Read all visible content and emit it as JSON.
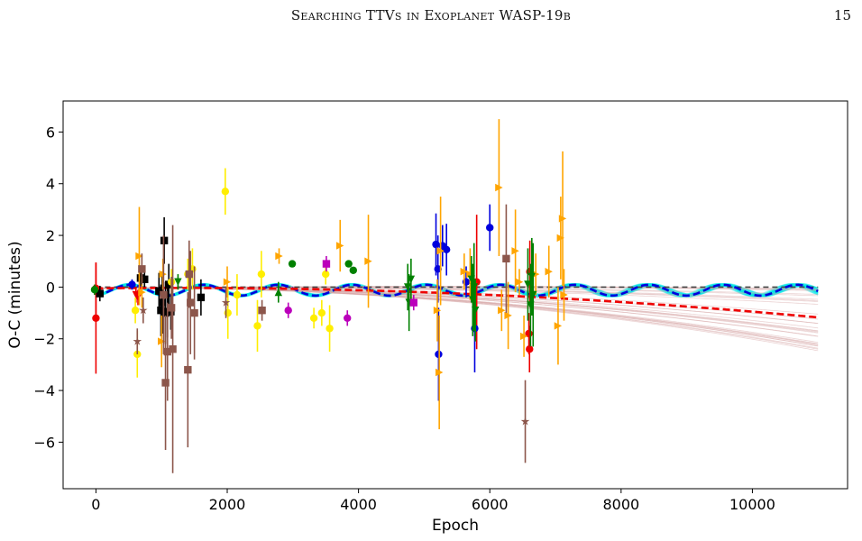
{
  "page": {
    "running_title": "Searching TTVs in Exoplanet WASP-19b",
    "page_number": "15"
  },
  "chart_data": {
    "type": "scatter",
    "title": "",
    "xlabel": "Epoch",
    "ylabel": "O-C (minutes)",
    "xlim": [
      -500,
      11450
    ],
    "ylim": [
      -7.8,
      7.2
    ],
    "xticks": [
      0,
      2000,
      4000,
      6000,
      8000,
      10000
    ],
    "xtick_labels": [
      "0",
      "2000",
      "4000",
      "6000",
      "8000",
      "10000"
    ],
    "yticks": [
      -6,
      -4,
      -2,
      0,
      2,
      4,
      6
    ],
    "ytick_labels": [
      "−6",
      "−4",
      "−2",
      "0",
      "2",
      "4",
      "6"
    ],
    "grid": false,
    "legend": "none",
    "colors": {
      "red": "#ee0000",
      "black": "#000000",
      "blue": "#0000dd",
      "yellow": "#ffee00",
      "orange": "#ffa500",
      "brown": "#8c564b",
      "green": "#008000",
      "magenta": "#bb00bb",
      "cyan": "#00e5e5",
      "ref_line": "#444444",
      "red_samples": "#d8a8a8"
    },
    "models": [
      {
        "id": "linear-reference",
        "style": "dashed",
        "color": "#444444",
        "x": [
          0,
          11000
        ],
        "y": [
          0,
          0
        ]
      },
      {
        "id": "sinusoidal-model",
        "style": "dashed",
        "color": "#0000dd",
        "kind": "sinusoid",
        "amplitude": 0.21,
        "period": 1130,
        "phase": -1.3,
        "offset": -0.12,
        "x_range": [
          0,
          11000
        ]
      },
      {
        "id": "quadratic-model",
        "style": "dashed",
        "color": "#ee0000",
        "kind": "quadratic",
        "c0": -0.05,
        "c1": 3e-05,
        "c2": -1.2e-08,
        "x_range": [
          0,
          11000
        ]
      }
    ],
    "posterior_samples": [
      {
        "id": "sinusoid-samples",
        "color": "#00e5e5",
        "count": 40
      },
      {
        "id": "quadratic-samples",
        "color": "#d8a8a8",
        "count": 30
      }
    ],
    "series": [
      {
        "id": "red",
        "marker": "circle",
        "color": "#ee0000",
        "points": [
          {
            "x": 0,
            "y": -1.2,
            "e": 2.15
          },
          {
            "x": 0,
            "y": -0.05,
            "e": 1.0
          },
          {
            "x": 6595,
            "y": -1.8,
            "e": 0.8
          },
          {
            "x": 6605,
            "y": -2.4,
            "e": 0.9
          },
          {
            "x": 6610,
            "y": 0.6,
            "e": 1.2
          },
          {
            "x": 5800,
            "y": 0.2,
            "e": 2.6
          }
        ]
      },
      {
        "id": "red-triangles",
        "marker": "triangle-down",
        "color": "#ee0000",
        "points": [
          {
            "x": 610,
            "y": -0.3,
            "e": 0.3
          },
          {
            "x": 640,
            "y": -0.4,
            "e": 0.3
          }
        ]
      },
      {
        "id": "black",
        "marker": "square",
        "color": "#000000",
        "points": [
          {
            "x": 60,
            "y": -0.25,
            "e": 0.3
          },
          {
            "x": 680,
            "y": 0.35,
            "e": 0.3
          },
          {
            "x": 740,
            "y": 0.3,
            "e": 0.3
          },
          {
            "x": 960,
            "y": -0.15,
            "e": 0.7
          },
          {
            "x": 990,
            "y": -0.9,
            "e": 1.0
          },
          {
            "x": 1010,
            "y": -0.6,
            "e": 1.2
          },
          {
            "x": 1040,
            "y": 1.8,
            "e": 0.9
          },
          {
            "x": 1060,
            "y": -1.0,
            "e": 1.2
          },
          {
            "x": 1090,
            "y": -0.95,
            "e": 1.0
          },
          {
            "x": 1110,
            "y": 0.1,
            "e": 0.8
          },
          {
            "x": 1140,
            "y": -0.95,
            "e": 0.7
          },
          {
            "x": 1600,
            "y": -0.4,
            "e": 0.7
          }
        ]
      },
      {
        "id": "blue",
        "marker": "circle",
        "color": "#0000dd",
        "points": [
          {
            "x": 5180,
            "y": 1.65,
            "e": 1.2
          },
          {
            "x": 5210,
            "y": 0.7,
            "e": 1.3
          },
          {
            "x": 5220,
            "y": -2.6,
            "e": 1.8
          },
          {
            "x": 5280,
            "y": 1.6,
            "e": 0.8
          },
          {
            "x": 5340,
            "y": 1.45,
            "e": 1.0
          },
          {
            "x": 5640,
            "y": 0.2,
            "e": 0.6
          },
          {
            "x": 5770,
            "y": -1.6,
            "e": 1.7
          },
          {
            "x": 6000,
            "y": 2.3,
            "e": 0.9
          },
          {
            "x": 550,
            "y": 0.1,
            "e": 0.2
          }
        ]
      },
      {
        "id": "yellow",
        "marker": "circle",
        "color": "#ffee00",
        "points": [
          {
            "x": 600,
            "y": -0.9,
            "e": 0.5
          },
          {
            "x": 630,
            "y": -2.6,
            "e": 0.9
          },
          {
            "x": 1150,
            "y": 0.2,
            "e": 0.5
          },
          {
            "x": 1400,
            "y": 0.5,
            "e": 0.6
          },
          {
            "x": 1470,
            "y": 0.7,
            "e": 0.8
          },
          {
            "x": 1970,
            "y": 3.7,
            "e": 0.9
          },
          {
            "x": 2010,
            "y": -1.0,
            "e": 1.0
          },
          {
            "x": 2150,
            "y": -0.3,
            "e": 0.8
          },
          {
            "x": 2460,
            "y": -1.5,
            "e": 1.0
          },
          {
            "x": 2520,
            "y": 0.5,
            "e": 0.9
          },
          {
            "x": 3320,
            "y": -1.2,
            "e": 0.4
          },
          {
            "x": 3440,
            "y": -1.0,
            "e": 0.5
          },
          {
            "x": 3500,
            "y": 0.5,
            "e": 0.4
          },
          {
            "x": 3560,
            "y": -1.6,
            "e": 0.9
          }
        ]
      },
      {
        "id": "orange",
        "marker": "triangle-right",
        "color": "#ffa500",
        "points": [
          {
            "x": 660,
            "y": 1.2,
            "e": 1.9
          },
          {
            "x": 700,
            "y": -0.2,
            "e": 0.6
          },
          {
            "x": 1000,
            "y": -2.1,
            "e": 1.0
          },
          {
            "x": 1020,
            "y": 0.5,
            "e": 0.6
          },
          {
            "x": 2000,
            "y": 0.2,
            "e": 0.6
          },
          {
            "x": 2790,
            "y": 1.2,
            "e": 0.3
          },
          {
            "x": 3720,
            "y": 1.6,
            "e": 1.0
          },
          {
            "x": 4150,
            "y": 1.0,
            "e": 1.8
          },
          {
            "x": 5200,
            "y": -0.9,
            "e": 1.2
          },
          {
            "x": 5230,
            "y": -3.3,
            "e": 2.2
          },
          {
            "x": 5250,
            "y": 1.4,
            "e": 2.1
          },
          {
            "x": 5610,
            "y": 0.6,
            "e": 0.7
          },
          {
            "x": 5700,
            "y": 0.5,
            "e": 1.0
          },
          {
            "x": 6140,
            "y": 3.85,
            "e": 2.65
          },
          {
            "x": 6180,
            "y": -0.9,
            "e": 0.8
          },
          {
            "x": 6280,
            "y": -1.1,
            "e": 1.3
          },
          {
            "x": 6390,
            "y": 1.4,
            "e": 1.6
          },
          {
            "x": 6450,
            "y": 0.2,
            "e": 0.5
          },
          {
            "x": 6520,
            "y": -1.9,
            "e": 0.8
          },
          {
            "x": 6700,
            "y": 0.5,
            "e": 0.8
          },
          {
            "x": 6900,
            "y": 0.6,
            "e": 1.0
          },
          {
            "x": 7040,
            "y": -1.5,
            "e": 1.5
          },
          {
            "x": 7080,
            "y": 1.9,
            "e": 1.6
          },
          {
            "x": 7110,
            "y": 2.65,
            "e": 2.6
          },
          {
            "x": 7130,
            "y": -0.3,
            "e": 1.0
          }
        ]
      },
      {
        "id": "brown",
        "marker": "square",
        "color": "#8c564b",
        "points": [
          {
            "x": 700,
            "y": 0.7,
            "e": 0.6
          },
          {
            "x": 1030,
            "y": -0.3,
            "e": 2.3
          },
          {
            "x": 1060,
            "y": -3.7,
            "e": 2.6
          },
          {
            "x": 1090,
            "y": -2.5,
            "e": 1.9
          },
          {
            "x": 1150,
            "y": -0.8,
            "e": 1.2
          },
          {
            "x": 1170,
            "y": -2.4,
            "e": 4.8
          },
          {
            "x": 1400,
            "y": -3.2,
            "e": 3.0
          },
          {
            "x": 1420,
            "y": 0.5,
            "e": 1.3
          },
          {
            "x": 1440,
            "y": -0.6,
            "e": 2.0
          },
          {
            "x": 1500,
            "y": -1.0,
            "e": 1.8
          },
          {
            "x": 2530,
            "y": -0.9,
            "e": 0.4
          },
          {
            "x": 6250,
            "y": 1.1,
            "e": 2.1
          }
        ]
      },
      {
        "id": "brown-stars",
        "marker": "star",
        "color": "#8c564b",
        "points": [
          {
            "x": 630,
            "y": -2.1,
            "e": 0.5
          },
          {
            "x": 720,
            "y": -0.9,
            "e": 0.5
          },
          {
            "x": 1980,
            "y": -0.6,
            "e": 0.6
          },
          {
            "x": 6540,
            "y": -5.2,
            "e": 1.6
          }
        ]
      },
      {
        "id": "green",
        "marker": "triangle-down",
        "color": "#008000",
        "points": [
          {
            "x": 1250,
            "y": 0.2,
            "e": 0.3
          },
          {
            "x": 4750,
            "y": 0.0,
            "e": 0.9
          },
          {
            "x": 4770,
            "y": -0.6,
            "e": 1.1
          },
          {
            "x": 4800,
            "y": 0.3,
            "e": 0.8
          },
          {
            "x": 5720,
            "y": 0.3,
            "e": 0.9
          },
          {
            "x": 5740,
            "y": -0.5,
            "e": 1.4
          },
          {
            "x": 5760,
            "y": 0.0,
            "e": 1.7
          },
          {
            "x": 5780,
            "y": -0.9,
            "e": 1.2
          },
          {
            "x": 6580,
            "y": 0.1,
            "e": 1.4
          },
          {
            "x": 6620,
            "y": -0.7,
            "e": 1.6
          },
          {
            "x": 6640,
            "y": 0.4,
            "e": 1.5
          },
          {
            "x": 6660,
            "y": -0.3,
            "e": 2.0
          }
        ]
      },
      {
        "id": "green-circles",
        "marker": "circle",
        "color": "#008000",
        "points": [
          {
            "x": 2990,
            "y": 0.9,
            "e": 0
          },
          {
            "x": 3850,
            "y": 0.9,
            "e": 0
          },
          {
            "x": 3920,
            "y": 0.65,
            "e": 0
          },
          {
            "x": -20,
            "y": -0.1,
            "e": 0.2
          }
        ]
      },
      {
        "id": "green-triangle-up",
        "marker": "triangle-up",
        "color": "#008000",
        "points": [
          {
            "x": 2780,
            "y": -0.2,
            "e": 0.4
          }
        ]
      },
      {
        "id": "magenta",
        "marker": "square",
        "color": "#bb00bb",
        "points": [
          {
            "x": 3510,
            "y": 0.9,
            "e": 0.3
          },
          {
            "x": 4840,
            "y": -0.6,
            "e": 0.3
          }
        ]
      },
      {
        "id": "magenta-circles",
        "marker": "circle",
        "color": "#bb00bb",
        "points": [
          {
            "x": 2930,
            "y": -0.9,
            "e": 0.3
          },
          {
            "x": 3830,
            "y": -1.2,
            "e": 0.3
          }
        ]
      }
    ]
  }
}
